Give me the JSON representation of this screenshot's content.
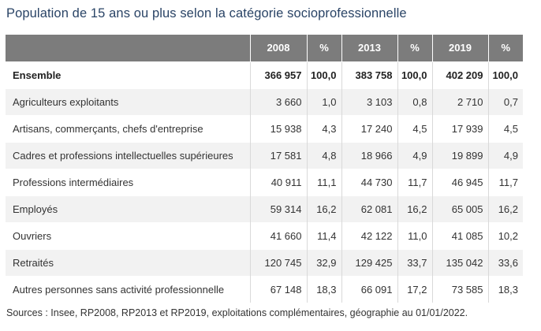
{
  "title": "Population de 15 ans ou plus selon la catégorie socioprofessionnelle",
  "headers": [
    "",
    "2008",
    "%",
    "2013",
    "%",
    "2019",
    "%"
  ],
  "rows": [
    {
      "label": "Ensemble",
      "values": [
        "366 957",
        "100,0",
        "383 758",
        "100,0",
        "402 209",
        "100,0"
      ]
    },
    {
      "label": "Agriculteurs exploitants",
      "values": [
        "3 660",
        "1,0",
        "3 103",
        "0,8",
        "2 710",
        "0,7"
      ]
    },
    {
      "label": "Artisans, commerçants, chefs d'entreprise",
      "values": [
        "15 938",
        "4,3",
        "17 240",
        "4,5",
        "17 939",
        "4,5"
      ]
    },
    {
      "label": "Cadres et professions intellectuelles supérieures",
      "values": [
        "17 581",
        "4,8",
        "18 966",
        "4,9",
        "19 899",
        "4,9"
      ]
    },
    {
      "label": "Professions intermédiaires",
      "values": [
        "40 911",
        "11,1",
        "44 730",
        "11,7",
        "46 945",
        "11,7"
      ]
    },
    {
      "label": "Employés",
      "values": [
        "59 314",
        "16,2",
        "62 081",
        "16,2",
        "65 005",
        "16,2"
      ]
    },
    {
      "label": "Ouvriers",
      "values": [
        "41 660",
        "11,4",
        "42 122",
        "11,0",
        "41 085",
        "10,2"
      ]
    },
    {
      "label": "Retraités",
      "values": [
        "120 745",
        "32,9",
        "129 425",
        "33,7",
        "135 042",
        "33,6"
      ]
    },
    {
      "label": "Autres personnes sans activité professionnelle",
      "values": [
        "67 148",
        "18,3",
        "66 091",
        "17,2",
        "73 585",
        "18,3"
      ]
    }
  ],
  "source": "Sources : Insee, RP2008, RP2013 et RP2019, exploitations complémentaires, géographie au 01/01/2022."
}
